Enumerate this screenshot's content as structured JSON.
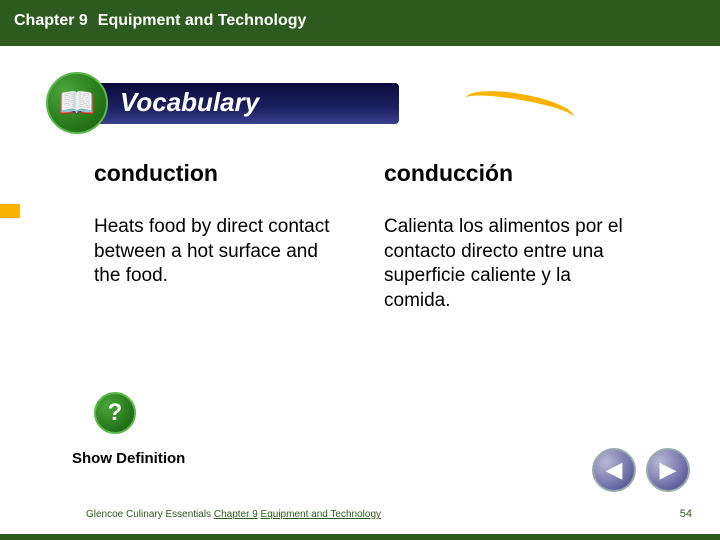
{
  "header": {
    "chapter_label": "Chapter 9",
    "chapter_title": "Equipment and Technology"
  },
  "vocab_badge": {
    "label": "Vocabulary",
    "icon_name": "book-icon"
  },
  "terms": {
    "left": {
      "word": "conduction",
      "definition": "Heats food by direct contact between a hot surface and the food."
    },
    "right": {
      "word": "conducción",
      "definition": "Calienta los alimentos por el contacto directo entre una superficie caliente y la comida."
    }
  },
  "help_icon_glyph": "?",
  "show_definition_label": "Show Definition",
  "footer": {
    "publisher": "Glencoe Culinary Essentials",
    "chapter": "Chapter 9",
    "title": "Equipment and Technology"
  },
  "nav": {
    "prev_glyph": "◀",
    "next_glyph": "▶"
  },
  "page_number": "54",
  "colors": {
    "header_green": "#2d5a1e",
    "accent_orange": "#f8b200",
    "pill_navy": "#1b2060"
  }
}
